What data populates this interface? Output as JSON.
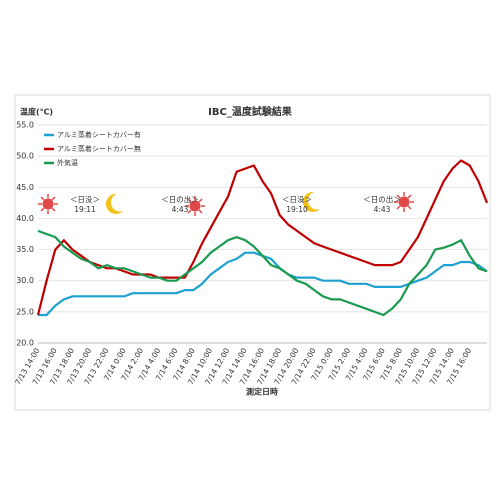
{
  "chart_data": {
    "type": "line",
    "title": "IBC_温度試験結果",
    "y_label": "温度(℃)",
    "x_label": "測定日時",
    "categories": [
      "7/13 14:00",
      null,
      "7/13 16:00",
      null,
      "7/13 18:00",
      null,
      "7/13 20:00",
      null,
      "7/13 22:00",
      null,
      "7/14 0:00",
      null,
      "7/14 2:00",
      null,
      "7/14 4:00",
      null,
      "7/14 6:00",
      null,
      "7/14 8:00",
      null,
      "7/14 10:00",
      null,
      "7/14 12:00",
      null,
      "7/14 14:00",
      null,
      "7/14 16:00",
      null,
      "7/14 18:00",
      null,
      "7/14 20:00",
      null,
      "7/14 22:00",
      null,
      "7/15 0:00",
      null,
      "7/15 2:00",
      null,
      "7/15 4:00",
      null,
      "7/15 6:00",
      null,
      "7/15 8:00",
      null,
      "7/15 10:00",
      null,
      "7/15 12:00",
      null,
      "7/15 14:00",
      null,
      "7/15 16:00",
      null,
      null
    ],
    "series": [
      {
        "name": "アルミ蒸着シートカバー有",
        "color": "#1ea0d0",
        "values": [
          24.5,
          24.5,
          26,
          27,
          27.5,
          27.5,
          27.5,
          27.5,
          27.5,
          27.5,
          27.5,
          28,
          28,
          28,
          28,
          28,
          28,
          28.5,
          28.5,
          29.5,
          31,
          32,
          33,
          33.5,
          34.5,
          34.5,
          34,
          33.5,
          32,
          31,
          30.5,
          30.5,
          30.5,
          30,
          30,
          30,
          29.5,
          29.5,
          29.5,
          29,
          29,
          29,
          29,
          29.5,
          30,
          30.5,
          31.5,
          32.5,
          32.5,
          33,
          33,
          32.5,
          31.5
        ]
      },
      {
        "name": "アルミ蒸着シートカバー無",
        "color": "#c00000",
        "values": [
          24.5,
          30,
          35,
          36.5,
          35,
          34,
          33,
          32.5,
          32,
          32,
          31.5,
          31,
          31,
          31,
          30.5,
          30.5,
          30.5,
          30.5,
          33,
          36,
          38.5,
          41,
          43.5,
          47.5,
          48,
          48.5,
          46,
          44,
          40.5,
          39,
          38,
          37,
          36,
          35.5,
          35,
          34.5,
          34,
          33.5,
          33,
          32.5,
          32.5,
          32.5,
          33,
          35,
          37,
          40,
          43,
          46,
          48,
          49.3,
          48.5,
          46,
          42.5
        ]
      },
      {
        "name": "外気温",
        "color": "#1a9a50",
        "values": [
          38,
          37.5,
          37,
          35.5,
          34.5,
          33.5,
          33,
          32,
          32.5,
          32,
          32,
          31.5,
          31,
          30.5,
          30.5,
          30,
          30,
          31,
          32,
          33,
          34.5,
          35.5,
          36.5,
          37,
          36.5,
          35.5,
          34,
          32.5,
          32,
          31,
          30,
          29.5,
          28.5,
          27.5,
          27,
          27,
          26.5,
          26,
          25.5,
          25,
          24.5,
          25.5,
          27,
          29.5,
          31,
          32.5,
          35,
          35.3,
          35.8,
          36.5,
          34,
          32,
          31.5
        ]
      }
    ],
    "ylim": [
      20,
      55
    ],
    "yticks": [
      {
        "value": 20,
        "label": "20.0"
      },
      {
        "value": 25,
        "label": "25.0"
      },
      {
        "value": 30,
        "label": "30.0"
      },
      {
        "value": 35,
        "label": "35.0"
      },
      {
        "value": 40,
        "label": "40.0"
      },
      {
        "value": 45,
        "label": "45.0"
      },
      {
        "value": 50,
        "label": "50.0"
      },
      {
        "value": 55,
        "label": "55.0"
      }
    ],
    "grid": true,
    "legend": "top-left",
    "annotations": [
      [
        "＜日没＞",
        "19:11"
      ],
      [
        "＜日の出＞",
        "4:43"
      ],
      [
        "＜日没＞",
        "19:10"
      ],
      [
        "＜日の出＞",
        "4:43"
      ]
    ]
  }
}
